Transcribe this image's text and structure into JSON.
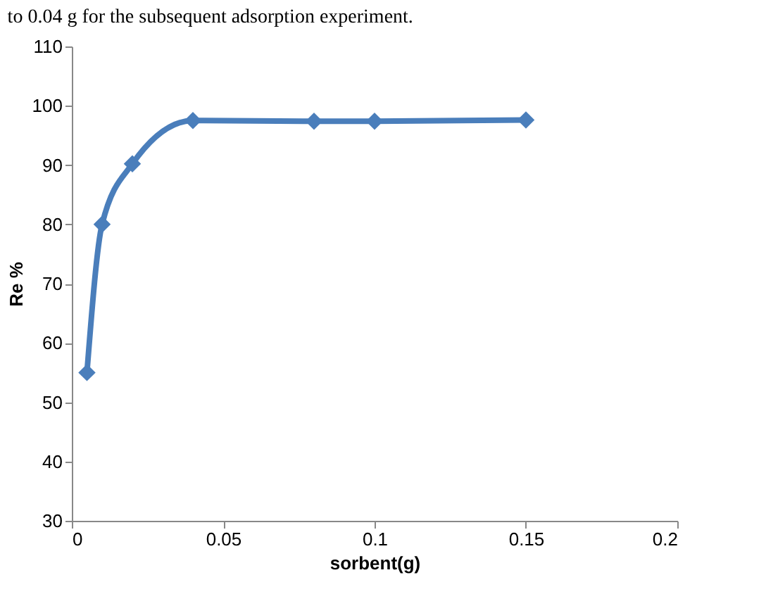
{
  "chart_data": {
    "type": "line",
    "xlabel": "sorbent(g)",
    "ylabel": "Re %",
    "annotations": [
      "to 0.04 g for the subsequent adsorption experiment."
    ],
    "x": [
      0.005,
      0.01,
      0.02,
      0.04,
      0.08,
      0.1,
      0.15
    ],
    "series": [
      {
        "color": "#4a7ebb",
        "values": [
          55,
          80,
          90.2,
          97.5,
          97.4,
          97.4,
          97.6
        ]
      }
    ],
    "xlim": [
      0,
      0.2
    ],
    "xticks": [
      0,
      0.05,
      0.1,
      0.15,
      0.2
    ],
    "ylim": [
      30,
      110
    ],
    "yticks": [
      30,
      40,
      50,
      60,
      70,
      80,
      90,
      100,
      110
    ],
    "marker": "diamond",
    "line_style": "solid",
    "grid": false
  }
}
